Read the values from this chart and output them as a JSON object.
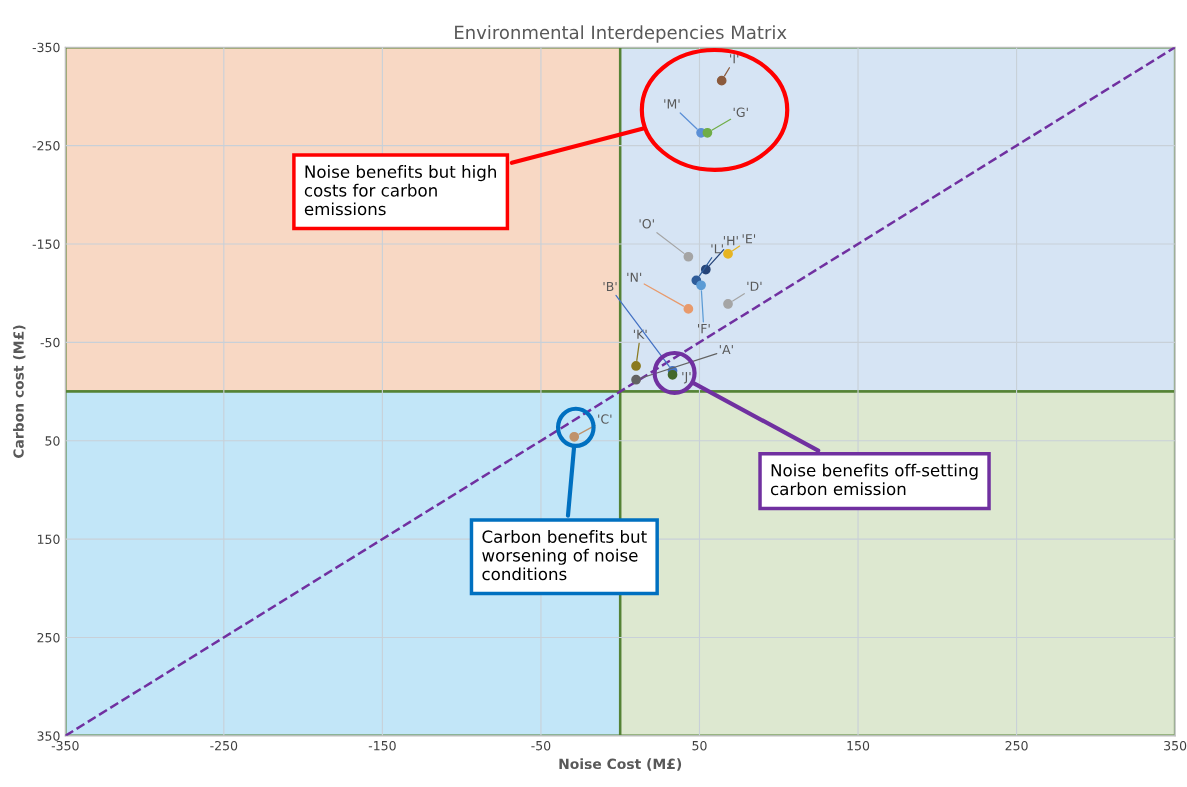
{
  "chart_data": {
    "type": "scatter",
    "title": "Environmental Interdepencies Matrix",
    "xlabel": "Noise Cost (M£)",
    "ylabel": "Carbon cost (M£)",
    "xlim": [
      -350,
      350
    ],
    "xticks": [
      -350,
      -250,
      -150,
      -50,
      50,
      150,
      250,
      350
    ],
    "ylim": [
      350,
      -350
    ],
    "yticks": [
      -350,
      -250,
      -150,
      -50,
      50,
      150,
      250,
      350
    ],
    "grid": true,
    "legend": false,
    "marker": "circle",
    "series": [
      {
        "name": "'I'",
        "color": "#8b5a3c",
        "x": [
          64
        ],
        "values": [
          -316
        ]
      },
      {
        "name": "'M'",
        "color": "#5b8fd6",
        "x": [
          51
        ],
        "values": [
          -263
        ]
      },
      {
        "name": "'G'",
        "color": "#70ad47",
        "x": [
          55
        ],
        "values": [
          -263
        ]
      },
      {
        "name": "'O'",
        "color": "#a5a5a5",
        "x": [
          43
        ],
        "values": [
          -137
        ]
      },
      {
        "name": "'H'",
        "color": "#264478",
        "x": [
          54
        ],
        "values": [
          -124
        ]
      },
      {
        "name": "'E'",
        "color": "#e6b422",
        "x": [
          68
        ],
        "values": [
          -140
        ]
      },
      {
        "name": "'L'",
        "color": "#2e5c9a",
        "x": [
          48
        ],
        "values": [
          -113
        ]
      },
      {
        "name": "'F'",
        "color": "#5b9bd5",
        "x": [
          51
        ],
        "values": [
          -108
        ]
      },
      {
        "name": "'D'",
        "color": "#a5a5a5",
        "x": [
          68
        ],
        "values": [
          -89
        ]
      },
      {
        "name": "'N'",
        "color": "#e89a6c",
        "x": [
          43
        ],
        "values": [
          -84
        ]
      },
      {
        "name": "'K'",
        "color": "#8a7a20",
        "x": [
          10
        ],
        "values": [
          -26
        ]
      },
      {
        "name": "'B'",
        "color": "#4472c4",
        "x": [
          33
        ],
        "values": [
          -21
        ]
      },
      {
        "name": "'J'",
        "color": "#43682b",
        "x": [
          33
        ],
        "values": [
          -17
        ]
      },
      {
        "name": "'A'",
        "color": "#636363",
        "x": [
          10
        ],
        "values": [
          -12
        ]
      },
      {
        "name": "'C'",
        "color": "#c0936b",
        "x": [
          -29
        ],
        "values": [
          46
        ]
      },
      {
        "type": "line",
        "color": "#7030a0",
        "line_style": "dashed",
        "marker": "none",
        "x": [
          -350,
          350
        ],
        "values": [
          350,
          -350
        ]
      }
    ],
    "annotations": [
      "Noise benefits but high\ncosts for carbon\nemissions",
      "Noise benefits off-setting\ncarbon emission",
      "Carbon benefits but\nworsening of noise\nconditions"
    ]
  }
}
